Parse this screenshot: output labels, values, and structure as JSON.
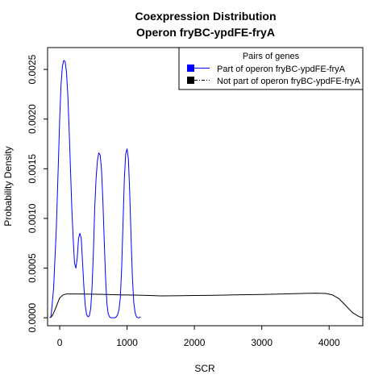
{
  "chart_data": {
    "type": "line",
    "title": "Coexpression Distribution",
    "subtitle": "Operon fryBC-ypdFE-fryA",
    "xlabel": "SCR",
    "ylabel": "Probability Density",
    "xlim": [
      -180,
      4500
    ],
    "ylim": [
      -8e-05,
      0.00272
    ],
    "x_ticks": [
      0,
      1000,
      2000,
      3000,
      4000
    ],
    "x_tick_labels": [
      "0",
      "1000",
      "2000",
      "3000",
      "4000"
    ],
    "y_ticks": [
      0.0,
      0.0005,
      0.001,
      0.0015,
      0.002,
      0.0025
    ],
    "y_tick_labels": [
      "0.0000",
      "0.0005",
      "0.0010",
      "0.0015",
      "0.0020",
      "0.0025"
    ],
    "grid": false,
    "legend": {
      "title": "Pairs of genes",
      "placement": "top-right",
      "entries": [
        {
          "label": "Part of operon fryBC-ypdFE-fryA",
          "color": "#0000ff",
          "line_style": "solid"
        },
        {
          "label": "Not part of operon fryBC-ypdFE-fryA",
          "color": "#000000",
          "line_style": "dashdot"
        }
      ]
    },
    "series": [
      {
        "name": "Part of operon fryBC-ypdFE-fryA",
        "color": "#0000ff",
        "x": [
          -130,
          -90,
          -50,
          -20,
          0,
          20,
          40,
          60,
          80,
          100,
          120,
          140,
          160,
          180,
          200,
          220,
          240,
          260,
          280,
          300,
          320,
          340,
          360,
          380,
          400,
          420,
          440,
          460,
          480,
          500,
          520,
          540,
          560,
          580,
          600,
          620,
          640,
          660,
          680,
          700,
          720,
          740,
          760,
          780,
          800,
          820,
          840,
          860,
          880,
          900,
          920,
          940,
          960,
          980,
          1000,
          1020,
          1040,
          1060,
          1080,
          1100,
          1120,
          1140,
          1160,
          1180,
          1200
        ],
        "y": [
          0.0,
          0.0003,
          0.0009,
          0.00155,
          0.002,
          0.00235,
          0.00253,
          0.00259,
          0.00258,
          0.00248,
          0.00225,
          0.0019,
          0.0015,
          0.0011,
          0.0008,
          0.00055,
          0.0005,
          0.0006,
          0.0008,
          0.00085,
          0.0008,
          0.00055,
          0.0003,
          0.00012,
          3e-05,
          1e-05,
          2e-05,
          9e-05,
          0.0003,
          0.00065,
          0.0011,
          0.0014,
          0.00158,
          0.00166,
          0.00164,
          0.0015,
          0.0012,
          0.0008,
          0.00042,
          0.00015,
          4e-05,
          1e-05,
          0.0,
          0.0,
          0.0,
          0.0,
          1e-05,
          3e-05,
          8e-05,
          0.0002,
          0.0005,
          0.00095,
          0.0014,
          0.00165,
          0.0017,
          0.0016,
          0.00125,
          0.0008,
          0.0004,
          0.00015,
          5e-05,
          1e-05,
          0.0,
          0.0,
          1e-05
        ]
      },
      {
        "name": "Not part of operon fryBC-ypdFE-fryA",
        "color": "#000000",
        "x": [
          -150,
          -110,
          -70,
          -30,
          0,
          50,
          100,
          200,
          300,
          500,
          700,
          900,
          1100,
          1300,
          1500,
          1800,
          2000,
          2300,
          2600,
          3000,
          3300,
          3600,
          3800,
          3950,
          4050,
          4150,
          4250,
          4350,
          4450,
          4500
        ],
        "y": [
          0.0,
          2e-05,
          8e-05,
          0.00015,
          0.0002,
          0.00023,
          0.00024,
          0.00024,
          0.00024,
          0.000238,
          0.000235,
          0.00023,
          0.000228,
          0.000225,
          0.00022,
          0.000222,
          0.000224,
          0.000226,
          0.00023,
          0.000234,
          0.00024,
          0.000245,
          0.000248,
          0.000245,
          0.00023,
          0.00019,
          0.00012,
          5e-05,
          1e-05,
          0.0
        ]
      }
    ]
  }
}
